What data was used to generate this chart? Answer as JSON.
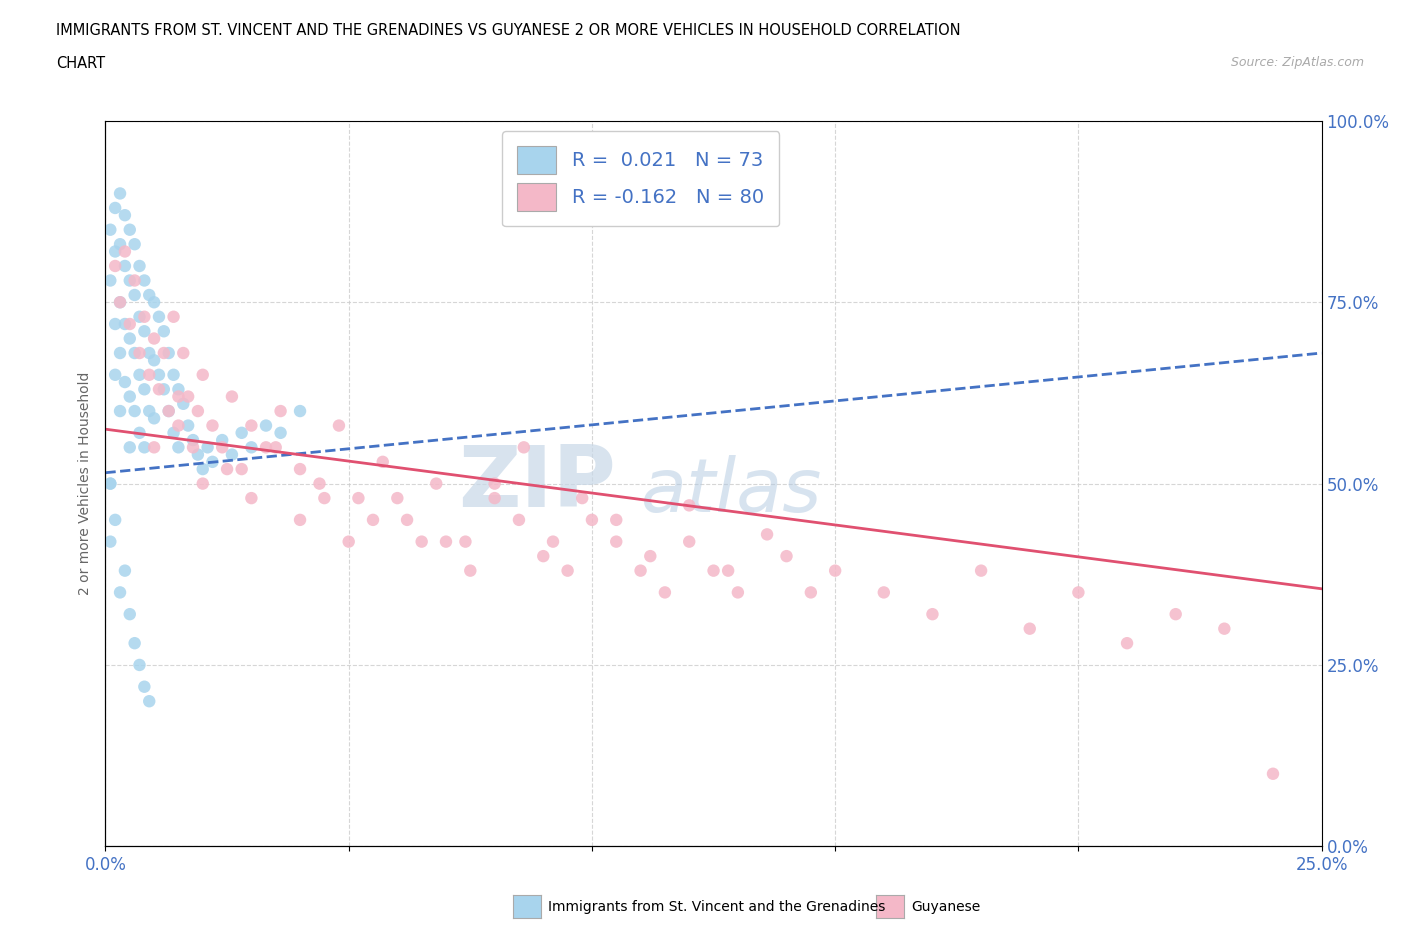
{
  "title_line1": "IMMIGRANTS FROM ST. VINCENT AND THE GRENADINES VS GUYANESE 2 OR MORE VEHICLES IN HOUSEHOLD CORRELATION",
  "title_line2": "CHART",
  "source": "Source: ZipAtlas.com",
  "blue_label": "Immigrants from St. Vincent and the Grenadines",
  "pink_label": "Guyanese",
  "blue_R": 0.021,
  "blue_N": 73,
  "pink_R": -0.162,
  "pink_N": 80,
  "blue_color": "#a8d4ed",
  "pink_color": "#f4b8c8",
  "blue_line_color": "#4472c4",
  "pink_line_color": "#e05070",
  "blue_line_style": "--",
  "pink_line_style": "-",
  "xmin": 0.0,
  "xmax": 0.25,
  "ymin": 0.0,
  "ymax": 1.0,
  "ylabel": "2 or more Vehicles in Household",
  "watermark_zip": "ZIP",
  "watermark_atlas": "atlas",
  "blue_scatter_x": [
    0.001,
    0.001,
    0.001,
    0.002,
    0.002,
    0.002,
    0.002,
    0.003,
    0.003,
    0.003,
    0.003,
    0.003,
    0.004,
    0.004,
    0.004,
    0.004,
    0.005,
    0.005,
    0.005,
    0.005,
    0.005,
    0.006,
    0.006,
    0.006,
    0.006,
    0.007,
    0.007,
    0.007,
    0.007,
    0.008,
    0.008,
    0.008,
    0.008,
    0.009,
    0.009,
    0.009,
    0.01,
    0.01,
    0.01,
    0.011,
    0.011,
    0.012,
    0.012,
    0.013,
    0.013,
    0.014,
    0.014,
    0.015,
    0.015,
    0.016,
    0.017,
    0.018,
    0.019,
    0.02,
    0.021,
    0.022,
    0.024,
    0.026,
    0.028,
    0.03,
    0.033,
    0.036,
    0.04,
    0.001,
    0.001,
    0.002,
    0.003,
    0.004,
    0.005,
    0.006,
    0.007,
    0.008,
    0.009
  ],
  "blue_scatter_y": [
    0.85,
    0.78,
    0.5,
    0.88,
    0.82,
    0.72,
    0.65,
    0.9,
    0.83,
    0.75,
    0.68,
    0.6,
    0.87,
    0.8,
    0.72,
    0.64,
    0.85,
    0.78,
    0.7,
    0.62,
    0.55,
    0.83,
    0.76,
    0.68,
    0.6,
    0.8,
    0.73,
    0.65,
    0.57,
    0.78,
    0.71,
    0.63,
    0.55,
    0.76,
    0.68,
    0.6,
    0.75,
    0.67,
    0.59,
    0.73,
    0.65,
    0.71,
    0.63,
    0.68,
    0.6,
    0.65,
    0.57,
    0.63,
    0.55,
    0.61,
    0.58,
    0.56,
    0.54,
    0.52,
    0.55,
    0.53,
    0.56,
    0.54,
    0.57,
    0.55,
    0.58,
    0.57,
    0.6,
    0.5,
    0.42,
    0.45,
    0.35,
    0.38,
    0.32,
    0.28,
    0.25,
    0.22,
    0.2
  ],
  "pink_scatter_x": [
    0.002,
    0.003,
    0.004,
    0.005,
    0.006,
    0.007,
    0.008,
    0.009,
    0.01,
    0.011,
    0.012,
    0.013,
    0.014,
    0.015,
    0.016,
    0.017,
    0.018,
    0.019,
    0.02,
    0.022,
    0.024,
    0.026,
    0.028,
    0.03,
    0.033,
    0.036,
    0.04,
    0.044,
    0.048,
    0.052,
    0.057,
    0.062,
    0.068,
    0.074,
    0.08,
    0.086,
    0.092,
    0.098,
    0.105,
    0.112,
    0.12,
    0.128,
    0.136,
    0.145,
    0.01,
    0.02,
    0.03,
    0.04,
    0.05,
    0.06,
    0.07,
    0.08,
    0.09,
    0.1,
    0.11,
    0.12,
    0.13,
    0.14,
    0.15,
    0.16,
    0.17,
    0.18,
    0.19,
    0.2,
    0.21,
    0.22,
    0.23,
    0.24,
    0.015,
    0.025,
    0.035,
    0.045,
    0.055,
    0.065,
    0.075,
    0.085,
    0.095,
    0.105,
    0.115,
    0.125
  ],
  "pink_scatter_y": [
    0.8,
    0.75,
    0.82,
    0.72,
    0.78,
    0.68,
    0.73,
    0.65,
    0.7,
    0.63,
    0.68,
    0.6,
    0.73,
    0.58,
    0.68,
    0.62,
    0.55,
    0.6,
    0.65,
    0.58,
    0.55,
    0.62,
    0.52,
    0.58,
    0.55,
    0.6,
    0.52,
    0.5,
    0.58,
    0.48,
    0.53,
    0.45,
    0.5,
    0.42,
    0.48,
    0.55,
    0.42,
    0.48,
    0.45,
    0.4,
    0.47,
    0.38,
    0.43,
    0.35,
    0.55,
    0.5,
    0.48,
    0.45,
    0.42,
    0.48,
    0.42,
    0.5,
    0.4,
    0.45,
    0.38,
    0.42,
    0.35,
    0.4,
    0.38,
    0.35,
    0.32,
    0.38,
    0.3,
    0.35,
    0.28,
    0.32,
    0.3,
    0.1,
    0.62,
    0.52,
    0.55,
    0.48,
    0.45,
    0.42,
    0.38,
    0.45,
    0.38,
    0.42,
    0.35,
    0.38
  ]
}
